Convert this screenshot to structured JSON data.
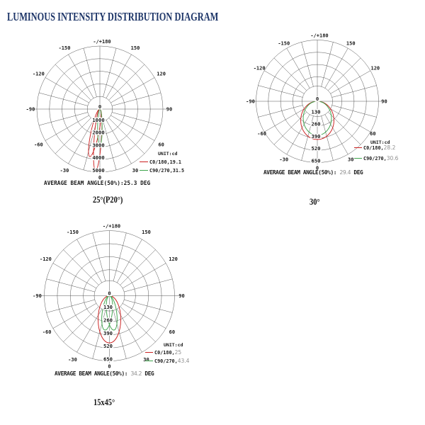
{
  "page_title": "LUMINOUS INTENSITY DISTRIBUTION DIAGRAM",
  "colors": {
    "title": "#1d3568",
    "text": "#1a1a1a",
    "grid": "#555555",
    "red": "#cb2020",
    "green": "#3ea44c",
    "muted_value": "#8f8f8f",
    "background": "#ffffff"
  },
  "chart_data": [
    {
      "type": "polar_intensity",
      "caption": "25°(P20°)",
      "unit_label": "UNIT:cd",
      "angle_labels_right": [
        "150",
        "120",
        "90",
        "60",
        "30"
      ],
      "angle_labels_left": [
        "-150",
        "-120",
        "-90",
        "-60",
        "-30"
      ],
      "angle_label_top": "-/+180",
      "angle_label_bottom": "0",
      "center_tick": "0",
      "radial_ticks": [
        "1000",
        "2000",
        "3000",
        "4000",
        "5000"
      ],
      "radial_max": 5000,
      "avg_prefix": "AVERAGE BEAM ANGLE(50%):",
      "avg_value": "25.3",
      "avg_suffix": " DEG",
      "value_muted": false,
      "series": [
        {
          "plane": "C0/180",
          "legend_label": "C0/180,",
          "legend_value": "19.1",
          "color": "red",
          "lobes": [
            {
              "shape": "ellipse",
              "peak_cd": 4880,
              "halfwidth_cd": 290,
              "tilt_deg": -4
            },
            {
              "shape": "ellipse",
              "peak_cd": 3850,
              "halfwidth_cd": 310,
              "tilt_deg": -12
            }
          ]
        },
        {
          "plane": "C90/270",
          "legend_label": "C90/270,",
          "legend_value": "31.5",
          "color": "green",
          "lobes": [
            {
              "shape": "ellipse",
              "peak_cd": 2950,
              "halfwidth_cd": 180,
              "tilt_deg": 0
            }
          ]
        }
      ]
    },
    {
      "type": "polar_intensity",
      "caption": "30°",
      "unit_label": "UNIT:cd",
      "angle_labels_right": [
        "150",
        "120",
        "90",
        "60",
        "30"
      ],
      "angle_labels_left": [
        "-150",
        "-120",
        "-90",
        "-60",
        "-30"
      ],
      "angle_label_top": "-/+180",
      "angle_label_bottom": "0",
      "center_tick": "0",
      "radial_ticks": [
        "130",
        "260",
        "390",
        "520",
        "650"
      ],
      "radial_max": 650,
      "avg_prefix": "AVERAGE BEAM ANGLE(50%): ",
      "avg_value": "29.4",
      "avg_suffix": " DEG",
      "value_muted": true,
      "series": [
        {
          "plane": "C0/180",
          "legend_label": "C0/180,",
          "legend_value": "28.2",
          "color": "red",
          "lobes": [
            {
              "shape": "ellipse",
              "peak_cd": 405,
              "halfwidth_cd": 176,
              "tilt_deg": 0
            }
          ]
        },
        {
          "plane": "C90/270",
          "legend_label": "C90/270,",
          "legend_value": "30.6",
          "color": "green",
          "lobes": [
            {
              "shape": "ellipse",
              "peak_cd": 360,
              "halfwidth_cd": 150,
              "tilt_deg": 0
            }
          ]
        }
      ]
    },
    {
      "type": "polar_intensity",
      "caption": "15x45°",
      "unit_label": "UNIT:cd",
      "angle_labels_right": [
        "150",
        "120",
        "90",
        "60",
        "30"
      ],
      "angle_labels_left": [
        "-150",
        "-120",
        "-90",
        "-60",
        "-30"
      ],
      "angle_label_top": "-/+180",
      "angle_label_bottom": "0",
      "center_tick": "0",
      "radial_ticks": [
        "130",
        "260",
        "390",
        "520",
        "650"
      ],
      "radial_max": 650,
      "avg_prefix": "AVERAGE BEAM ANGLE(50%): ",
      "avg_value": "34.2",
      "avg_suffix": " DEG",
      "value_muted": true,
      "series": [
        {
          "plane": "C0/180",
          "legend_label": "C0/180,",
          "legend_value": "25",
          "color": "red",
          "lobes": [
            {
              "shape": "ellipse",
              "peak_cd": 470,
              "halfwidth_cd": 113,
              "tilt_deg": 0
            }
          ]
        },
        {
          "plane": "C90/270",
          "legend_label": "C90/270,",
          "legend_value": "43.4",
          "color": "green",
          "lobes": [
            {
              "shape": "ellipse",
              "peak_cd": 345,
              "halfwidth_cd": 50,
              "tilt_deg": -7.5
            },
            {
              "shape": "ellipse",
              "peak_cd": 345,
              "halfwidth_cd": 50,
              "tilt_deg": 7.5
            }
          ]
        }
      ]
    }
  ]
}
